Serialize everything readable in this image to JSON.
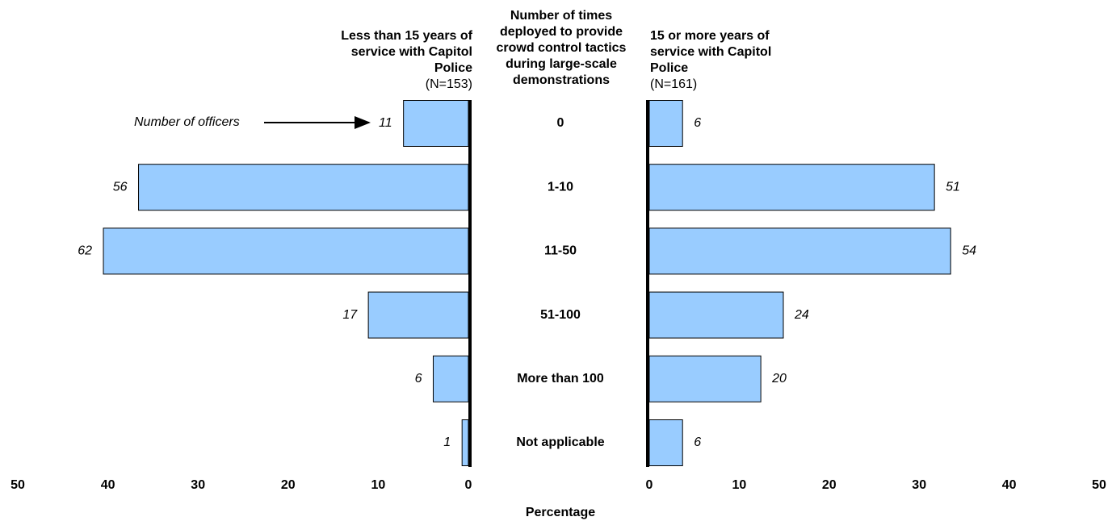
{
  "chart_data": {
    "type": "bar",
    "title": "Number of times deployed to provide crowd control tactics during large-scale demonstrations",
    "xlabel": "Percentage",
    "annotation": "Number of officers",
    "categories": [
      "0",
      "1-10",
      "11-50",
      "51-100",
      "More than 100",
      "Not applicable"
    ],
    "series": [
      {
        "name": "Less than 15 years of service with Capitol Police",
        "n_label": "(N=153)",
        "color": "#99ccff",
        "values": [
          7.2,
          36.6,
          40.5,
          11.1,
          3.9,
          0.7
        ],
        "counts": [
          11,
          56,
          62,
          17,
          6,
          1
        ],
        "xlim": [
          0,
          50
        ],
        "xticks": [
          0,
          10,
          20,
          30,
          40,
          50
        ]
      },
      {
        "name": "15 or more years of service with Capitol Police",
        "n_label": "(N=161)",
        "color": "#99ccff",
        "values": [
          3.7,
          31.7,
          33.5,
          14.9,
          12.4,
          3.7
        ],
        "counts": [
          6,
          51,
          54,
          24,
          20,
          6
        ],
        "xlim": [
          0,
          50
        ],
        "xticks": [
          0,
          10,
          20,
          30,
          40,
          50
        ]
      }
    ]
  }
}
